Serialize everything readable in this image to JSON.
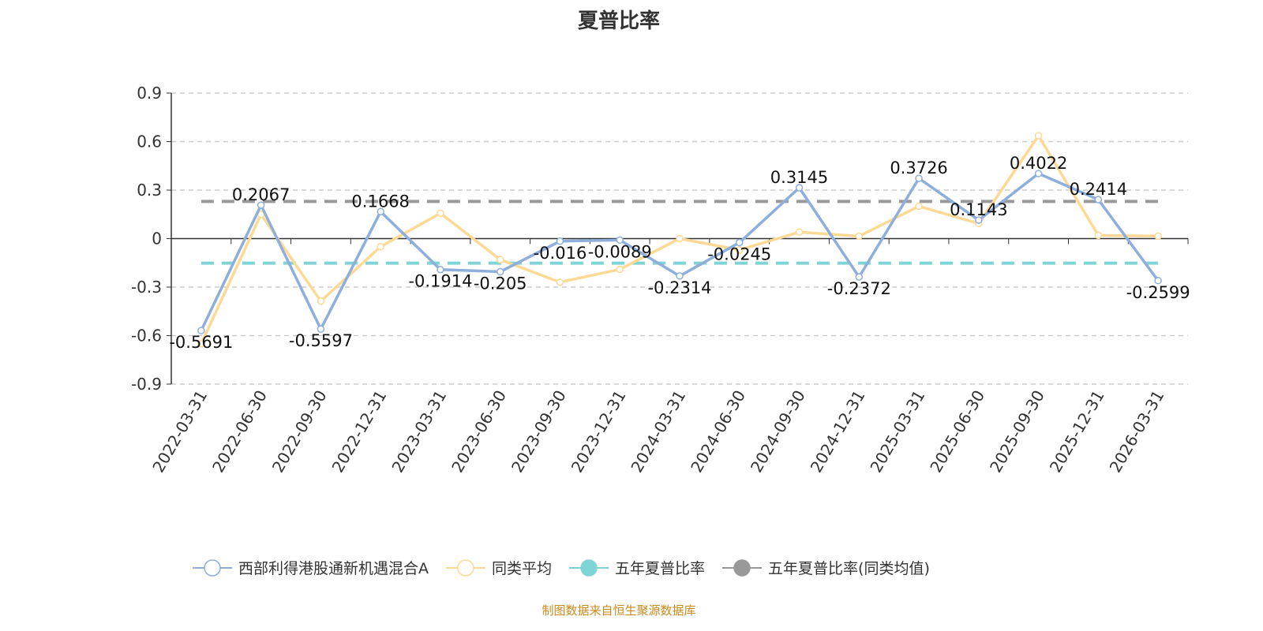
{
  "chart_data": {
    "type": "line",
    "title": "夏普比率",
    "categories": [
      "2022-03-31",
      "2022-06-30",
      "2022-09-30",
      "2022-12-31",
      "2023-03-31",
      "2023-06-30",
      "2023-09-30",
      "2023-12-31",
      "2024-03-31",
      "2024-06-30",
      "2024-09-30",
      "2024-12-31",
      "2025-03-31",
      "2025-06-30",
      "2025-09-30",
      "2025-12-31",
      "2026-03-31"
    ],
    "yticks": [
      "0.9",
      "0.6",
      "0.3",
      "0",
      "-0.3",
      "-0.6",
      "-0.9"
    ],
    "ylim": [
      -0.9,
      0.9
    ],
    "grid": true,
    "legend_position": "bottom",
    "series": [
      {
        "name": "西部利得港股通新机遇混合A",
        "color": "#8eaedc",
        "labeled": true,
        "values": [
          -0.5691,
          0.2067,
          -0.5597,
          0.1668,
          -0.1914,
          -0.205,
          -0.016,
          -0.0089,
          -0.2314,
          -0.0245,
          0.3145,
          -0.2372,
          0.3726,
          0.1143,
          0.4022,
          0.2414,
          -0.2599
        ]
      },
      {
        "name": "同类平均",
        "color": "#fcd994",
        "labeled": false,
        "values": [
          -0.65,
          0.15,
          -0.387,
          -0.05,
          0.157,
          -0.13,
          -0.27,
          -0.19,
          0.0,
          -0.07,
          0.04,
          0.015,
          0.2,
          0.093,
          0.636,
          0.02,
          0.015
        ]
      },
      {
        "name": "五年夏普比率",
        "color": "#7fd4d6",
        "constant": -0.152
      },
      {
        "name": "五年夏普比率(同类均值)",
        "color": "#999999",
        "constant": 0.23
      }
    ]
  },
  "footer": "制图数据来自恒生聚源数据库"
}
